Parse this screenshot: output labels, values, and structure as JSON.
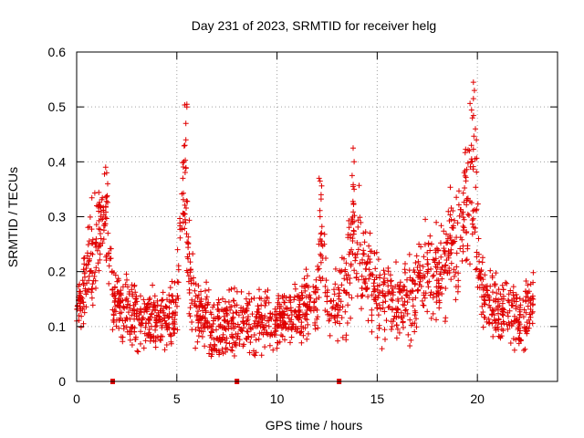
{
  "chart_data": {
    "type": "scatter",
    "title": "Day 231 of 2023, SRMTID for receiver helg",
    "xlabel": "GPS time / hours",
    "ylabel": "SRMTID / TECUs",
    "xlim": [
      0,
      24
    ],
    "ylim": [
      0,
      0.6
    ],
    "xticks": [
      0,
      5,
      10,
      15,
      20
    ],
    "yticks": [
      0,
      0.1,
      0.2,
      0.3,
      0.4,
      0.5,
      0.6
    ],
    "xtick_labels": [
      "0",
      "5",
      "10",
      "15",
      "20"
    ],
    "ytick_labels": [
      "0",
      "0.1",
      "0.2",
      "0.3",
      "0.4",
      "0.5",
      "0.6"
    ],
    "grid": true,
    "marker": "+",
    "color": "#e00000",
    "zero_markers_x": [
      1.8,
      8.0,
      13.1
    ],
    "profile": [
      [
        0.0,
        0.13,
        0.03
      ],
      [
        0.3,
        0.15,
        0.04
      ],
      [
        0.5,
        0.2,
        0.05
      ],
      [
        0.8,
        0.22,
        0.06
      ],
      [
        1.0,
        0.24,
        0.06
      ],
      [
        1.3,
        0.3,
        0.06
      ],
      [
        1.5,
        0.3,
        0.06
      ],
      [
        1.8,
        0.14,
        0.04
      ],
      [
        2.5,
        0.13,
        0.04
      ],
      [
        3.5,
        0.11,
        0.04
      ],
      [
        4.5,
        0.12,
        0.04
      ],
      [
        5.0,
        0.13,
        0.05
      ],
      [
        5.2,
        0.3,
        0.08
      ],
      [
        5.4,
        0.38,
        0.1
      ],
      [
        5.6,
        0.2,
        0.06
      ],
      [
        6.0,
        0.12,
        0.04
      ],
      [
        7.0,
        0.1,
        0.04
      ],
      [
        8.0,
        0.11,
        0.04
      ],
      [
        9.0,
        0.11,
        0.04
      ],
      [
        10.0,
        0.11,
        0.03
      ],
      [
        11.0,
        0.12,
        0.04
      ],
      [
        12.0,
        0.15,
        0.05
      ],
      [
        12.2,
        0.28,
        0.08
      ],
      [
        12.5,
        0.15,
        0.05
      ],
      [
        13.0,
        0.13,
        0.04
      ],
      [
        13.5,
        0.17,
        0.06
      ],
      [
        13.8,
        0.28,
        0.08
      ],
      [
        14.5,
        0.18,
        0.06
      ],
      [
        15.5,
        0.15,
        0.05
      ],
      [
        16.5,
        0.14,
        0.05
      ],
      [
        17.5,
        0.2,
        0.06
      ],
      [
        18.5,
        0.22,
        0.07
      ],
      [
        19.0,
        0.26,
        0.07
      ],
      [
        19.5,
        0.32,
        0.09
      ],
      [
        19.8,
        0.38,
        0.1
      ],
      [
        20.1,
        0.2,
        0.07
      ],
      [
        20.5,
        0.14,
        0.04
      ],
      [
        21.5,
        0.13,
        0.04
      ],
      [
        22.2,
        0.11,
        0.04
      ],
      [
        22.8,
        0.15,
        0.04
      ]
    ],
    "spikes": [
      [
        1.45,
        0.39
      ],
      [
        1.5,
        0.38
      ],
      [
        1.55,
        0.36
      ],
      [
        1.0,
        0.32
      ],
      [
        1.1,
        0.31
      ],
      [
        5.3,
        0.37
      ],
      [
        5.4,
        0.43
      ],
      [
        5.45,
        0.47
      ],
      [
        5.5,
        0.505
      ],
      [
        5.5,
        0.5
      ],
      [
        5.45,
        0.44
      ],
      [
        5.35,
        0.4
      ],
      [
        12.1,
        0.37
      ],
      [
        12.15,
        0.365
      ],
      [
        12.2,
        0.34
      ],
      [
        12.15,
        0.3
      ],
      [
        13.8,
        0.425
      ],
      [
        13.85,
        0.4
      ],
      [
        13.75,
        0.375
      ],
      [
        13.8,
        0.355
      ],
      [
        13.85,
        0.35
      ],
      [
        19.7,
        0.43
      ],
      [
        19.75,
        0.48
      ],
      [
        19.8,
        0.515
      ],
      [
        19.85,
        0.53
      ],
      [
        19.8,
        0.545
      ],
      [
        19.9,
        0.46
      ],
      [
        19.6,
        0.42
      ],
      [
        19.95,
        0.44
      ]
    ]
  }
}
